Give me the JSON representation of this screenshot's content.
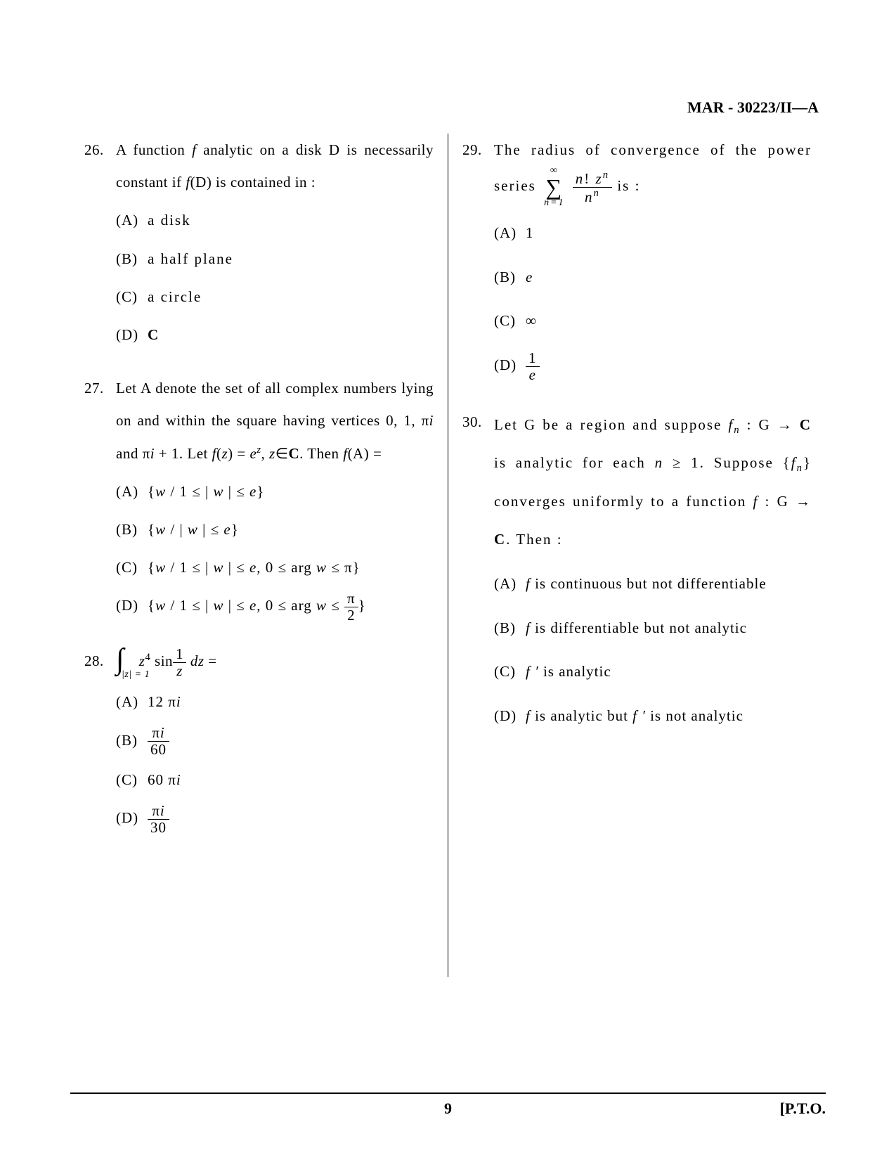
{
  "header": {
    "code": "MAR - 30223/II—A"
  },
  "questions": {
    "q26": {
      "number": "26.",
      "text_parts": [
        "A function ",
        " analytic on a disk D is necessarily constant if ",
        "(D) is contained in :"
      ],
      "f": "f",
      "options": {
        "a": {
          "label": "(A)",
          "text": "a disk"
        },
        "b": {
          "label": "(B)",
          "text": "a half plane"
        },
        "c": {
          "label": "(C)",
          "text": "a circle"
        },
        "d": {
          "label": "(D)",
          "text": "C"
        }
      }
    },
    "q27": {
      "number": "27.",
      "text": "Let A denote the set of all complex numbers lying on and within the square having vertices 0, 1, π",
      "text2": " and π",
      "text3": " + 1. Let ",
      "text4": "(",
      "text5": ") = ",
      "text6": ", ",
      "text7": "∈",
      "text8": ". Then ",
      "text9": "(A) =",
      "i": "i",
      "f": "f",
      "z": "z",
      "e": "e",
      "zsup": "z",
      "C": "C",
      "options": {
        "a": {
          "label": "(A)",
          "text": "{",
          "w": "w",
          "mid": " / 1 ≤ | ",
          "w2": "w",
          "end": " | ≤ ",
          "e": "e",
          "close": "}"
        },
        "b": {
          "label": "(B)",
          "text": "{",
          "w": "w",
          "mid": " / | ",
          "w2": "w",
          "end": " | ≤ ",
          "e": "e",
          "close": "}"
        },
        "c": {
          "label": "(C)",
          "text": "{",
          "w": "w",
          "mid": " / 1 ≤ | ",
          "w2": "w",
          "end": " | ≤ ",
          "e": "e",
          "arg": ", 0 ≤ arg ",
          "w3": "w",
          "pi": " ≤ π}",
          "close": ""
        },
        "d": {
          "label": "(D)",
          "text": "{",
          "w": "w",
          "mid": " / 1 ≤ | ",
          "w2": "w",
          "end": " | ≤ ",
          "e": "e",
          "arg": ", 0 ≤ arg ",
          "w3": "w",
          "le": " ≤ ",
          "pinum": "π",
          "piden": "2",
          "close": "}"
        }
      }
    },
    "q28": {
      "number": "28.",
      "integral_sub": "|z| = 1",
      "z": "z",
      "sup4": "4",
      "sin": " sin",
      "frac_num": "1",
      "frac_den": "z",
      "dz": " dz",
      "eq": " =",
      "options": {
        "a": {
          "label": "(A)",
          "text": "12 π",
          "i": "i"
        },
        "b": {
          "label": "(B)",
          "num": "π",
          "i": "i",
          "den": "60"
        },
        "c": {
          "label": "(C)",
          "text": "60 π",
          "i": "i"
        },
        "d": {
          "label": "(D)",
          "num": "π",
          "i": "i",
          "den": "30"
        }
      }
    },
    "q29": {
      "number": "29.",
      "text": "The radius of convergence of the power series ",
      "sum_top": "∞",
      "sum_bottom": "n=1",
      "frac_num_parts": [
        "n",
        "! ",
        "z"
      ],
      "frac_num_sup": "n",
      "frac_den": "n",
      "frac_den_sup": "n",
      "is": " is :",
      "options": {
        "a": {
          "label": "(A)",
          "text": "1"
        },
        "b": {
          "label": "(B)",
          "text": "e"
        },
        "c": {
          "label": "(C)",
          "text": "∞"
        },
        "d": {
          "label": "(D)",
          "num": "1",
          "den": "e"
        }
      }
    },
    "q30": {
      "number": "30.",
      "text": "Let G be a region and suppose ",
      "fn": "f",
      "n": "n",
      "colon": " : G → ",
      "C": "C",
      "analytic": " is analytic for each ",
      "nge": "n",
      "ge1": " ≥ 1. Suppose {",
      "fn2": "f",
      "n2": "n",
      "converges": "} converges uniformly to a function ",
      "f": "f",
      "colon2": " : G → ",
      "C2": "C",
      "then": ". Then :",
      "options": {
        "a": {
          "label": "(A)",
          "f": "f",
          "text": " is continuous but not differentiable"
        },
        "b": {
          "label": "(B)",
          "f": "f",
          "text": " is differentiable but not analytic"
        },
        "c": {
          "label": "(C)",
          "f": "f ′",
          "text": " is analytic"
        },
        "d": {
          "label": "(D)",
          "f": "f",
          "text": " is analytic but ",
          "f2": "f ′",
          "text2": " is not analytic"
        }
      }
    }
  },
  "footer": {
    "page": "9",
    "pto": "[P.T.O."
  }
}
